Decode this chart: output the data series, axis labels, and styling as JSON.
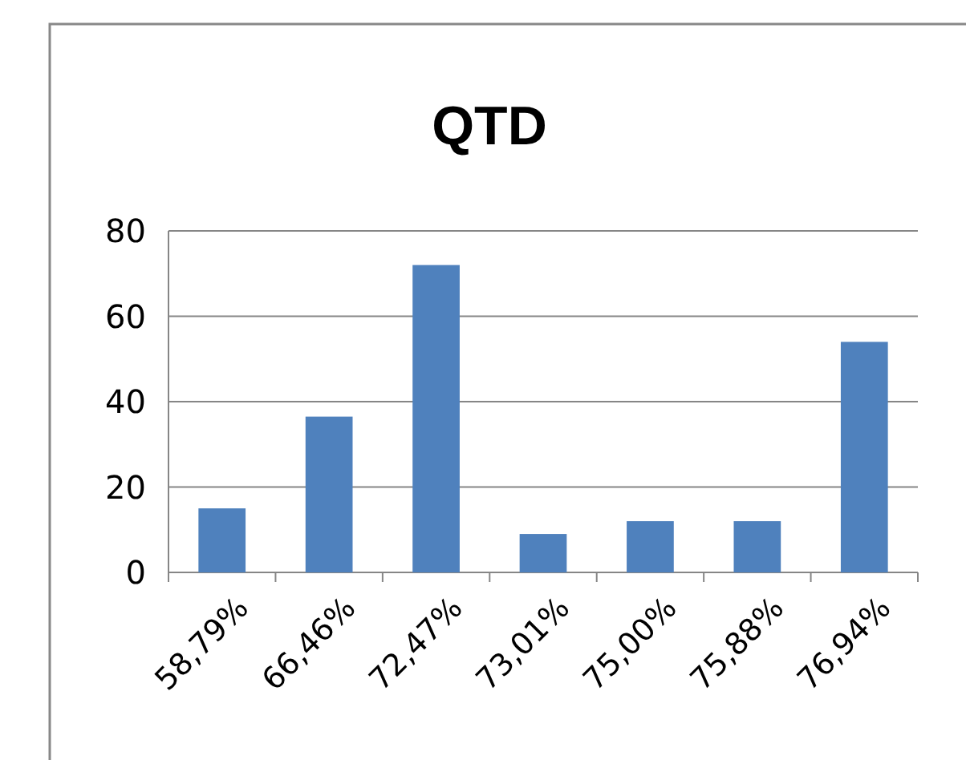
{
  "chart_data": {
    "type": "bar",
    "title": "QTD",
    "categories": [
      "58,79%",
      "66,46%",
      "72,47%",
      "73,01%",
      "75,00%",
      "75,88%",
      "76,94%"
    ],
    "values": [
      15,
      36.5,
      72,
      9,
      12,
      12,
      54
    ],
    "color": "#4f81bd",
    "ylim": [
      0,
      80
    ],
    "yticks": [
      0,
      20,
      40,
      60,
      80
    ],
    "grid": "y"
  }
}
